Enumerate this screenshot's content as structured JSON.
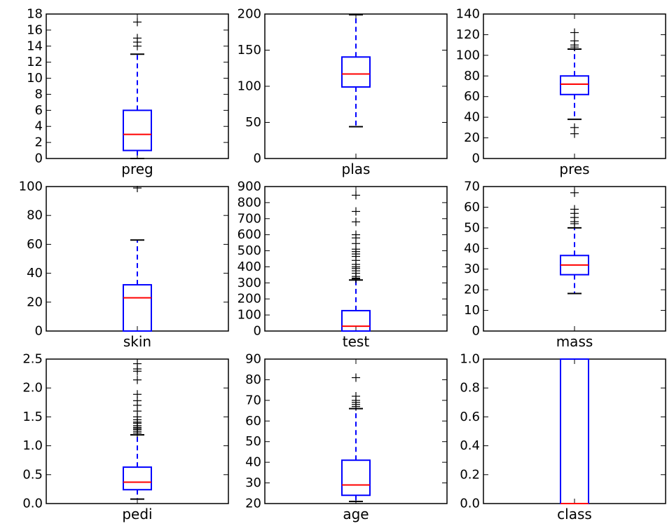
{
  "chart_data": [
    {
      "type": "box",
      "category": "preg",
      "ylim": [
        0,
        18
      ],
      "yticks": [
        0,
        2,
        4,
        6,
        8,
        10,
        12,
        14,
        16,
        18
      ],
      "box": {
        "whisker_low": 0,
        "q1": 1,
        "median": 3,
        "q3": 6,
        "whisker_high": 13
      },
      "fliers": [
        14,
        14.5,
        15,
        17
      ]
    },
    {
      "type": "box",
      "category": "plas",
      "ylim": [
        0,
        200
      ],
      "yticks": [
        0,
        50,
        100,
        150,
        200
      ],
      "box": {
        "whisker_low": 44,
        "q1": 99,
        "median": 117,
        "q3": 140.5,
        "whisker_high": 199
      },
      "fliers": []
    },
    {
      "type": "box",
      "category": "pres",
      "ylim": [
        0,
        140
      ],
      "yticks": [
        0,
        20,
        40,
        60,
        80,
        100,
        120,
        140
      ],
      "box": {
        "whisker_low": 38,
        "q1": 62,
        "median": 72,
        "q3": 80,
        "whisker_high": 106
      },
      "fliers": [
        24,
        30,
        108,
        110,
        114,
        122
      ]
    },
    {
      "type": "box",
      "category": "skin",
      "ylim": [
        0,
        100
      ],
      "yticks": [
        0,
        20,
        40,
        60,
        80,
        100
      ],
      "box": {
        "whisker_low": 0,
        "q1": 0,
        "median": 23,
        "q3": 32,
        "whisker_high": 63
      },
      "fliers": [
        99
      ]
    },
    {
      "type": "box",
      "category": "test",
      "ylim": [
        0,
        900
      ],
      "yticks": [
        0,
        100,
        200,
        300,
        400,
        500,
        600,
        700,
        800,
        900
      ],
      "box": {
        "whisker_low": 0,
        "q1": 0,
        "median": 30,
        "q3": 127,
        "whisker_high": 318
      },
      "fliers": [
        325,
        330,
        340,
        360,
        375,
        390,
        400,
        415,
        440,
        465,
        480,
        495,
        510,
        545,
        580,
        600,
        680,
        745,
        846
      ]
    },
    {
      "type": "box",
      "category": "mass",
      "ylim": [
        0,
        70
      ],
      "yticks": [
        0,
        10,
        20,
        30,
        40,
        50,
        60,
        70
      ],
      "box": {
        "whisker_low": 18.2,
        "q1": 27.3,
        "median": 32,
        "q3": 36.6,
        "whisker_high": 50
      },
      "fliers": [
        52,
        53,
        55,
        57,
        59,
        67
      ]
    },
    {
      "type": "box",
      "category": "pedi",
      "ylim": [
        0,
        2.5
      ],
      "yticks": [
        "0.0",
        "0.5",
        "1.0",
        "1.5",
        "2.0",
        "2.5"
      ],
      "box": {
        "whisker_low": 0.078,
        "q1": 0.24,
        "median": 0.37,
        "q3": 0.63,
        "whisker_high": 1.19
      },
      "fliers": [
        1.22,
        1.25,
        1.28,
        1.3,
        1.32,
        1.35,
        1.39,
        1.41,
        1.45,
        1.5,
        1.6,
        1.7,
        1.78,
        1.89,
        2.14,
        2.29,
        2.33,
        2.42
      ]
    },
    {
      "type": "box",
      "category": "age",
      "ylim": [
        20,
        90
      ],
      "yticks": [
        20,
        30,
        40,
        50,
        60,
        70,
        80,
        90
      ],
      "box": {
        "whisker_low": 21,
        "q1": 24,
        "median": 29,
        "q3": 41,
        "whisker_high": 66
      },
      "fliers": [
        67,
        68,
        69,
        70,
        72,
        81
      ]
    },
    {
      "type": "box",
      "category": "class",
      "ylim": [
        0.0,
        1.0
      ],
      "yticks": [
        "0.0",
        "0.2",
        "0.4",
        "0.6",
        "0.8",
        "1.0"
      ],
      "box": {
        "whisker_low": 0,
        "q1": 0,
        "median": 0,
        "q3": 1,
        "whisker_high": 1
      },
      "fliers": []
    }
  ],
  "colors": {
    "box": "#0000ff",
    "whisker": "#0000ff",
    "median": "#ff0000",
    "flier": "#000000",
    "axes": "#000000"
  }
}
